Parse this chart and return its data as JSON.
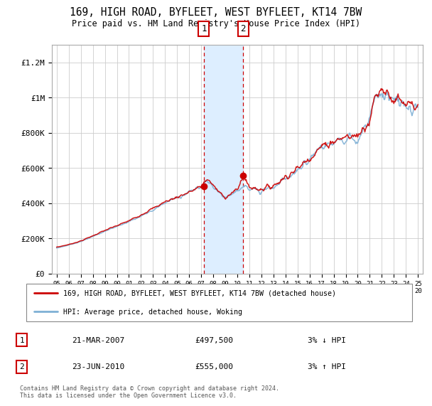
{
  "title": "169, HIGH ROAD, BYFLEET, WEST BYFLEET, KT14 7BW",
  "subtitle": "Price paid vs. HM Land Registry's House Price Index (HPI)",
  "legend_line1": "169, HIGH ROAD, BYFLEET, WEST BYFLEET, KT14 7BW (detached house)",
  "legend_line2": "HPI: Average price, detached house, Woking",
  "annotation1_label": "1",
  "annotation1_date": "21-MAR-2007",
  "annotation1_price": "£497,500",
  "annotation1_hpi": "3% ↓ HPI",
  "annotation2_label": "2",
  "annotation2_date": "23-JUN-2010",
  "annotation2_price": "£555,000",
  "annotation2_hpi": "3% ↑ HPI",
  "footer": "Contains HM Land Registry data © Crown copyright and database right 2024.\nThis data is licensed under the Open Government Licence v3.0.",
  "hpi_color": "#7eb0d5",
  "price_color": "#cc0000",
  "shading_color": "#ddeeff",
  "grid_color": "#cccccc",
  "background_color": "#ffffff",
  "ylim": [
    0,
    1300000
  ],
  "yticks": [
    0,
    200000,
    400000,
    600000,
    800000,
    1000000,
    1200000
  ],
  "ytick_labels": [
    "£0",
    "£200K",
    "£400K",
    "£600K",
    "£800K",
    "£1M",
    "£1.2M"
  ],
  "sale1_year": 2007.22,
  "sale2_year": 2010.48,
  "sale1_value": 497500,
  "sale2_value": 555000,
  "anchor_years": [
    1995,
    1996,
    1997,
    1998,
    1999,
    2000,
    2001,
    2002,
    2003,
    2004,
    2005,
    2006,
    2007,
    2007.5,
    2008,
    2008.5,
    2009,
    2009.5,
    2010,
    2010.5,
    2011,
    2012,
    2013,
    2014,
    2015,
    2016,
    2017,
    2018,
    2019,
    2020,
    2021,
    2021.5,
    2022,
    2022.5,
    2023,
    2023.5,
    2024,
    2025
  ],
  "anchor_hpi": [
    145000,
    162000,
    182000,
    210000,
    240000,
    268000,
    295000,
    325000,
    360000,
    400000,
    430000,
    460000,
    500000,
    530000,
    490000,
    455000,
    430000,
    450000,
    470000,
    490000,
    480000,
    475000,
    490000,
    540000,
    585000,
    650000,
    710000,
    745000,
    760000,
    770000,
    870000,
    990000,
    1040000,
    1020000,
    975000,
    960000,
    940000,
    920000
  ],
  "anchor_price": [
    150000,
    165000,
    185000,
    215000,
    245000,
    272000,
    300000,
    335000,
    370000,
    408000,
    435000,
    462000,
    495000,
    540000,
    500000,
    460000,
    435000,
    455000,
    475000,
    555000,
    490000,
    480000,
    500000,
    550000,
    595000,
    660000,
    720000,
    755000,
    775000,
    785000,
    880000,
    1010000,
    1060000,
    1030000,
    985000,
    970000,
    950000,
    930000
  ]
}
